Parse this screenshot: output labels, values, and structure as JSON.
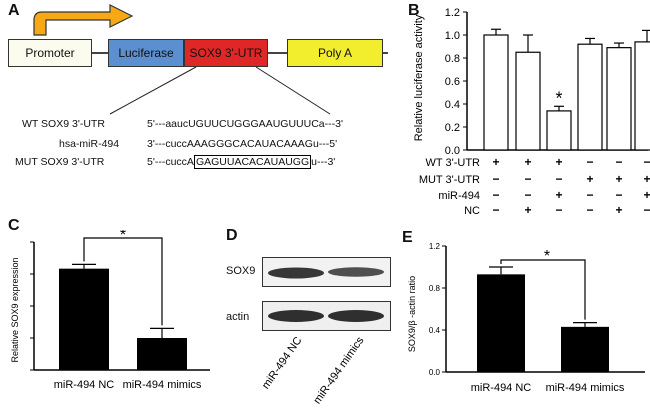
{
  "panels": {
    "A": "A",
    "B": "B",
    "C": "C",
    "D": "D",
    "E": "E"
  },
  "construct": {
    "promoter": "Promoter",
    "luciferase": "Luciferase",
    "utr": "SOX9 3'-UTR",
    "polya": "Poly A",
    "colors": {
      "promoter": "#fbfbee",
      "luciferase": "#5b8fd0",
      "utr": "#e02727",
      "polya": "#f2ee2e",
      "arrow": "#f6a915"
    }
  },
  "sequences": [
    {
      "label": "WT SOX9 3'-UTR",
      "seq": "5'---aaucUGUUCUGGGAAUGUUUCa---3'"
    },
    {
      "label": "hsa-miR-494",
      "seq": "3'---cuccAAAGGGCACAUACAAAGu---5'"
    },
    {
      "label": "MUT SOX9 3'-UTR",
      "seq_prefix": "5'---cuccA",
      "seq_boxed": "GAGUUACACAUAUGG",
      "seq_suffix": "u---3'"
    }
  ],
  "chart_data": [
    {
      "panel": "B",
      "type": "bar",
      "ylabel": "Relative luciferase activity",
      "ylim": [
        0,
        1.2
      ],
      "yticks": [
        "0.0",
        "0.2",
        "0.4",
        "0.6",
        "0.8",
        "1.0",
        "1.2"
      ],
      "values": [
        1.0,
        0.85,
        0.34,
        0.92,
        0.89,
        0.94
      ],
      "errors": [
        0.05,
        0.15,
        0.04,
        0.05,
        0.04,
        0.1
      ],
      "significance": [
        null,
        null,
        "*",
        null,
        null,
        null
      ],
      "bar_color": "#ffffff",
      "design_rows": [
        {
          "label": "WT 3'-UTR",
          "signs": [
            "+",
            "+",
            "+",
            "−",
            "−",
            "−"
          ]
        },
        {
          "label": "MUT 3'-UTR",
          "signs": [
            "−",
            "−",
            "−",
            "+",
            "+",
            "+"
          ]
        },
        {
          "label": "miR-494",
          "signs": [
            "−",
            "−",
            "+",
            "−",
            "−",
            "+"
          ]
        },
        {
          "label": "NC",
          "signs": [
            "−",
            "+",
            "−",
            "−",
            "+",
            "−"
          ]
        }
      ]
    },
    {
      "panel": "C",
      "type": "bar",
      "ylabel": "Relative SOX9 expression",
      "ylim": [
        0,
        1.2
      ],
      "categories": [
        "miR-494 NC",
        "miR-494 mimics"
      ],
      "values": [
        0.95,
        0.3
      ],
      "errors": [
        0.04,
        0.09
      ],
      "significance": "*",
      "bar_color": "#000000"
    },
    {
      "panel": "E",
      "type": "bar",
      "ylabel": "SOX9/β -actin ratio",
      "ylim": [
        0,
        1.2
      ],
      "yticks": [
        "0.0",
        "0.4",
        "0.8",
        "1.2"
      ],
      "categories": [
        "miR-494 NC",
        "miR-494 mimics"
      ],
      "values": [
        0.93,
        0.43
      ],
      "errors": [
        0.07,
        0.04
      ],
      "significance": "*",
      "bar_color": "#000000"
    }
  ],
  "western": {
    "rows": [
      "SOX9",
      "actin"
    ],
    "lanes": [
      "miR-494 NC",
      "miR-494 mimics"
    ]
  }
}
